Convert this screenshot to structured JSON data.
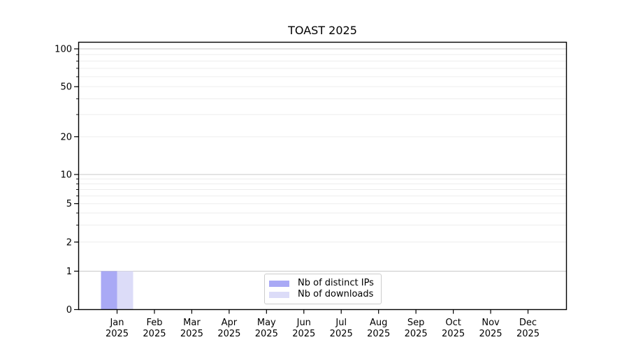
{
  "chart_data": {
    "type": "bar",
    "title": "TOAST 2025",
    "yscale": "symlog (linear 0-1, log 1-100)",
    "grid": true,
    "legend_position": "lower center inside plot",
    "categories": [
      {
        "month": "Jan",
        "year": "2025"
      },
      {
        "month": "Feb",
        "year": "2025"
      },
      {
        "month": "Mar",
        "year": "2025"
      },
      {
        "month": "Apr",
        "year": "2025"
      },
      {
        "month": "May",
        "year": "2025"
      },
      {
        "month": "Jun",
        "year": "2025"
      },
      {
        "month": "Jul",
        "year": "2025"
      },
      {
        "month": "Aug",
        "year": "2025"
      },
      {
        "month": "Sep",
        "year": "2025"
      },
      {
        "month": "Oct",
        "year": "2025"
      },
      {
        "month": "Nov",
        "year": "2025"
      },
      {
        "month": "Dec",
        "year": "2025"
      }
    ],
    "series": [
      {
        "name": "Nb of distinct IPs",
        "color": "#a9a9f5",
        "values": [
          1,
          0,
          0,
          0,
          0,
          0,
          0,
          0,
          0,
          0,
          0,
          0
        ]
      },
      {
        "name": "Nb of downloads",
        "color": "#dcdcf8",
        "values": [
          1,
          0,
          0,
          0,
          0,
          0,
          0,
          0,
          0,
          0,
          0,
          0
        ]
      }
    ],
    "yticks": [
      0,
      1,
      2,
      5,
      10,
      20,
      50,
      100
    ],
    "major_gridlines": [
      1,
      10,
      100
    ],
    "minor_gridlines": [
      2,
      3,
      4,
      5,
      6,
      7,
      8,
      9,
      20,
      30,
      40,
      50,
      60,
      70,
      80,
      90
    ],
    "ylim": [
      0,
      114
    ],
    "xlabel": "",
    "ylabel": ""
  },
  "colors": {
    "background": "#ffffff",
    "axis": "#000000",
    "tick_label": "#000000",
    "grid_major": "#c9c9c9",
    "grid_minor": "#ededed",
    "legend_border": "#cccccc",
    "legend_background": "#ffffff"
  }
}
